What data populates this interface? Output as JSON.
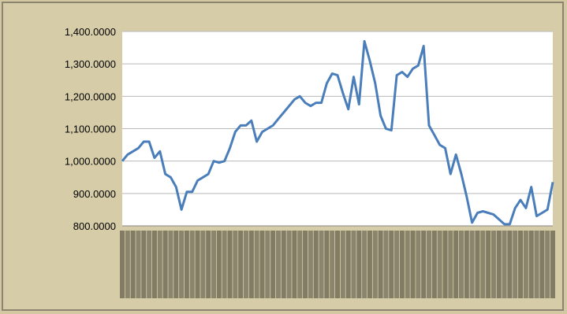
{
  "chart_data": {
    "type": "line",
    "title": "",
    "xlabel": "",
    "ylabel": "",
    "ylim": [
      800,
      1400
    ],
    "yticks": [
      800,
      900,
      1000,
      1100,
      1200,
      1300,
      1400
    ],
    "ytick_labels": [
      "800.0000",
      "900.0000",
      "1,000.0000",
      "1,100.0000",
      "1,200.0000",
      "1,300.0000",
      "1,400.0000"
    ],
    "grid": true,
    "legend": "none",
    "line_color": "#4a7ebb",
    "plot_background": "#ffffff",
    "chart_background": "#d6cca8",
    "series": [
      {
        "values": [
          1000,
          1020,
          1030,
          1040,
          1060,
          1060,
          1010,
          1030,
          960,
          950,
          920,
          850,
          905,
          905,
          940,
          950,
          960,
          1000,
          995,
          1000,
          1040,
          1090,
          1110,
          1110,
          1125,
          1060,
          1090,
          1100,
          1110,
          1130,
          1150,
          1170,
          1190,
          1200,
          1180,
          1170,
          1180,
          1180,
          1240,
          1270,
          1265,
          1210,
          1160,
          1260,
          1175,
          1370,
          1310,
          1240,
          1140,
          1100,
          1095,
          1265,
          1275,
          1260,
          1285,
          1295,
          1355,
          1110,
          1080,
          1050,
          1040,
          960,
          1020,
          960,
          890,
          810,
          840,
          845,
          840,
          835,
          820,
          805,
          805,
          855,
          880,
          855,
          920,
          830,
          840,
          850,
          935
        ]
      }
    ]
  }
}
